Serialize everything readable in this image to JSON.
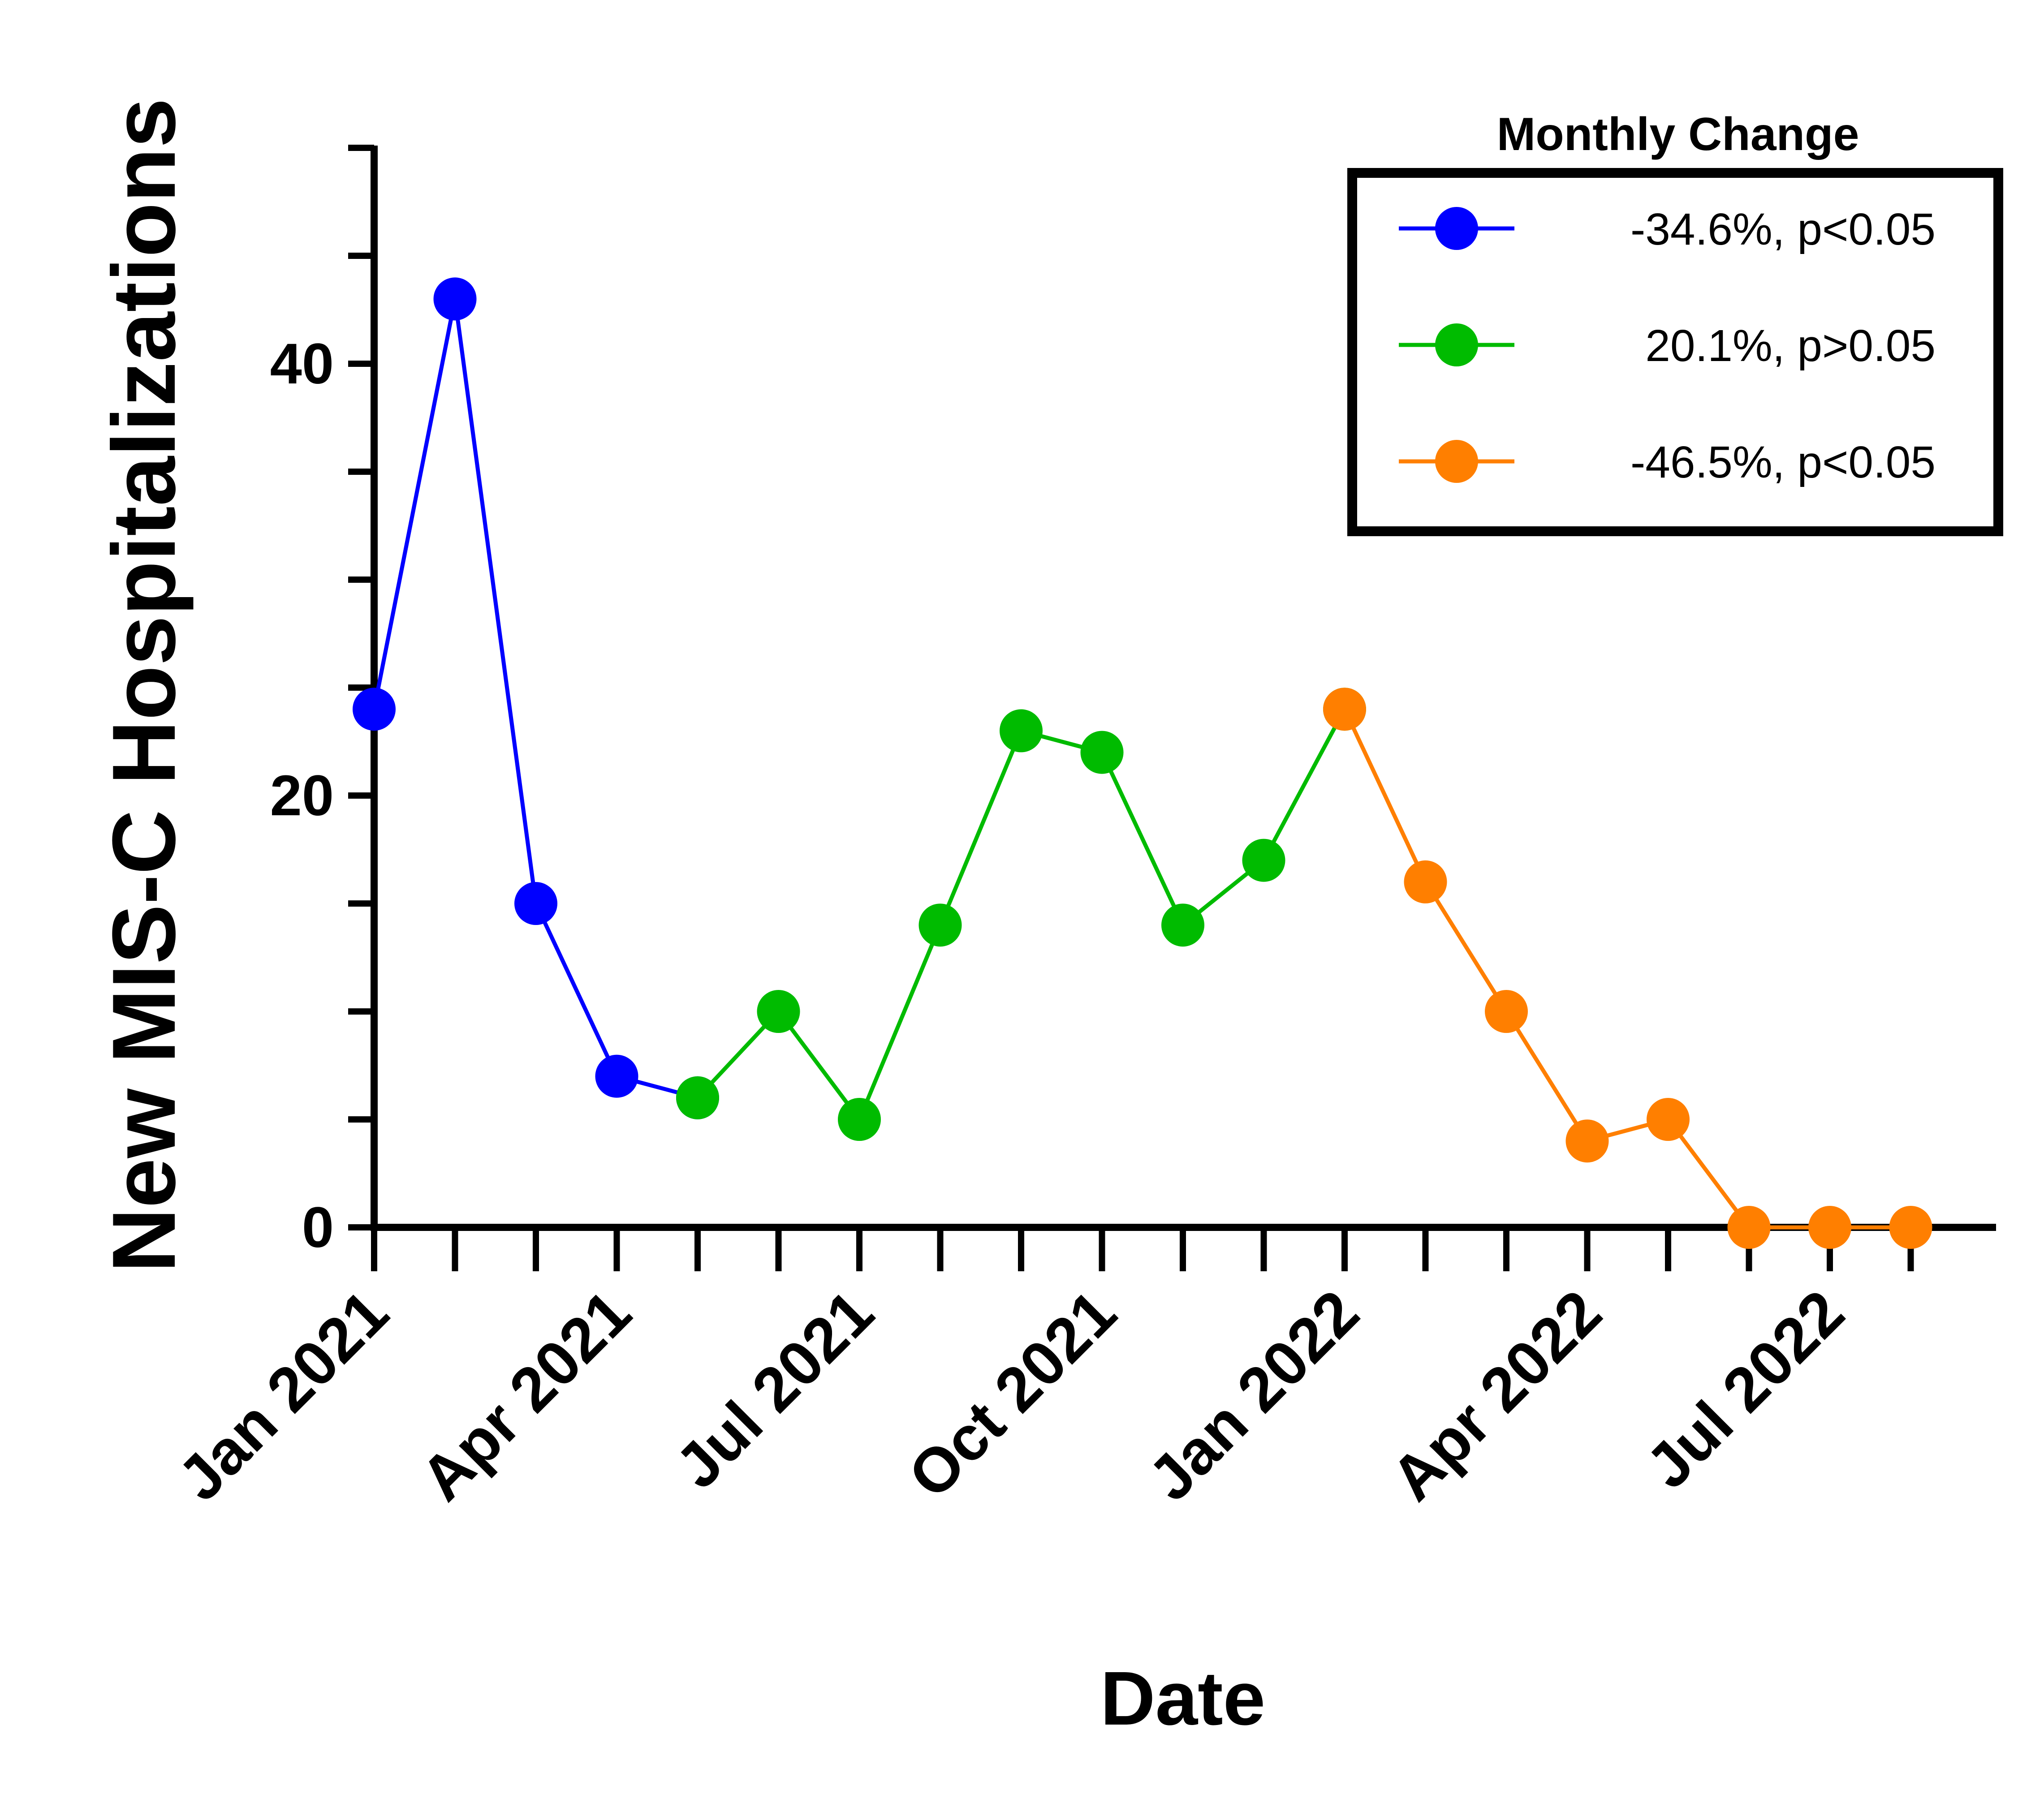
{
  "chart_data": {
    "type": "line",
    "title": "",
    "xlabel": "Date",
    "ylabel": "New MIS-C Hospitalizations",
    "ylim": [
      0,
      50
    ],
    "y_ticks": [
      0,
      20,
      40
    ],
    "x_tick_labels": [
      "Jan 2021",
      "Apr 2021",
      "Jul 2021",
      "Oct 2021",
      "Jan 2022",
      "Apr 2022",
      "Jul 2022"
    ],
    "legend_title": "Monthly Change",
    "legend_position": "top-right",
    "grid": false,
    "series": [
      {
        "name": "-34.6%, p<0.05",
        "color": "#0000ff",
        "x": [
          "2021-01",
          "2021-02",
          "2021-03",
          "2021-04",
          "2021-05"
        ],
        "values": [
          24,
          43,
          15,
          7,
          6
        ]
      },
      {
        "name": "20.1%, p>0.05",
        "color": "#00bb00",
        "x": [
          "2021-05",
          "2021-06",
          "2021-07",
          "2021-08",
          "2021-09",
          "2021-10",
          "2021-11",
          "2021-12",
          "2022-01"
        ],
        "values": [
          6,
          10,
          5,
          14,
          23,
          22,
          14,
          17,
          24
        ]
      },
      {
        "name": "-46.5%, p<0.05",
        "color": "#ff7f00",
        "x": [
          "2022-01",
          "2022-02",
          "2022-03",
          "2022-04",
          "2022-05",
          "2022-06",
          "2022-07",
          "2022-08"
        ],
        "values": [
          24,
          16,
          10,
          4,
          5,
          0,
          0,
          0
        ]
      }
    ]
  }
}
